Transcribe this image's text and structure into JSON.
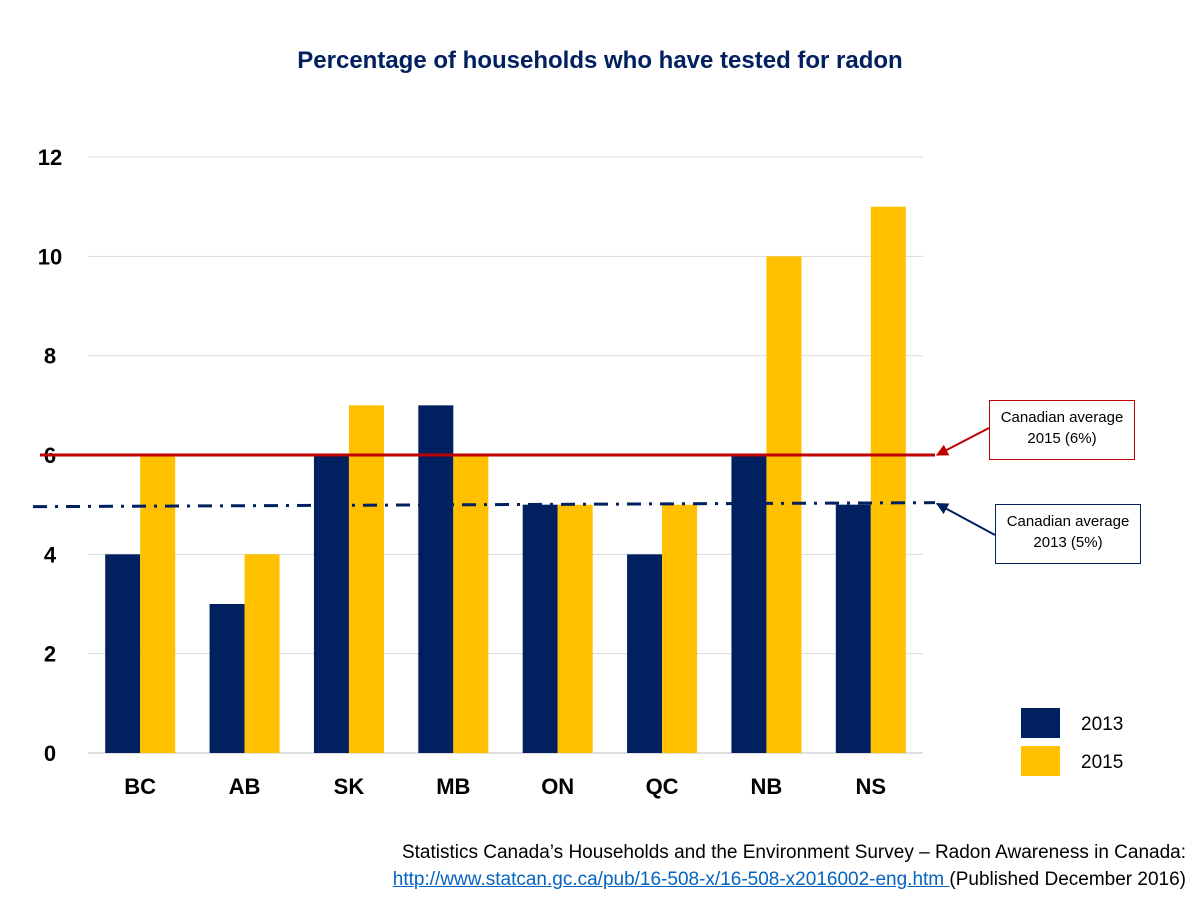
{
  "chart_data": {
    "type": "bar",
    "title": "Percentage of households who have tested for radon",
    "categories": [
      "BC",
      "AB",
      "SK",
      "MB",
      "ON",
      "QC",
      "NB",
      "NS"
    ],
    "series": [
      {
        "name": "2013",
        "color": "#002060",
        "values": [
          4,
          3,
          6,
          7,
          5,
          4,
          6,
          5
        ]
      },
      {
        "name": "2015",
        "color": "#ffc000",
        "values": [
          6,
          4,
          7,
          6,
          5,
          5,
          10,
          11
        ]
      }
    ],
    "ylim": [
      0,
      12
    ],
    "yticks": [
      "0",
      "2",
      "4",
      "6",
      "8",
      "10",
      "12"
    ],
    "xlabel": "",
    "ylabel": "",
    "grid": true,
    "legend": "bottom-right",
    "reference_lines": [
      {
        "value": 6,
        "style": "solid",
        "color": "#c00000",
        "label": "Canadian average 2015 (6%)"
      },
      {
        "value": 5,
        "style": "dash-dot",
        "color": "#002060",
        "label": "Canadian average 2013 (5%)"
      }
    ]
  },
  "annotations": {
    "avg_2015_line1": "Canadian average",
    "avg_2015_line2": "2015 (6%)",
    "avg_2013_line1": "Canadian average",
    "avg_2013_line2": "2013 (5%)"
  },
  "source": {
    "line1": "Statistics Canada’s Households and the Environment Survey – Radon Awareness in Canada:",
    "link": "http://www.statcan.gc.ca/pub/16-508-x/16-508-x2016002-eng.htm ",
    "line2_suffix": "(Published December 2016)"
  }
}
